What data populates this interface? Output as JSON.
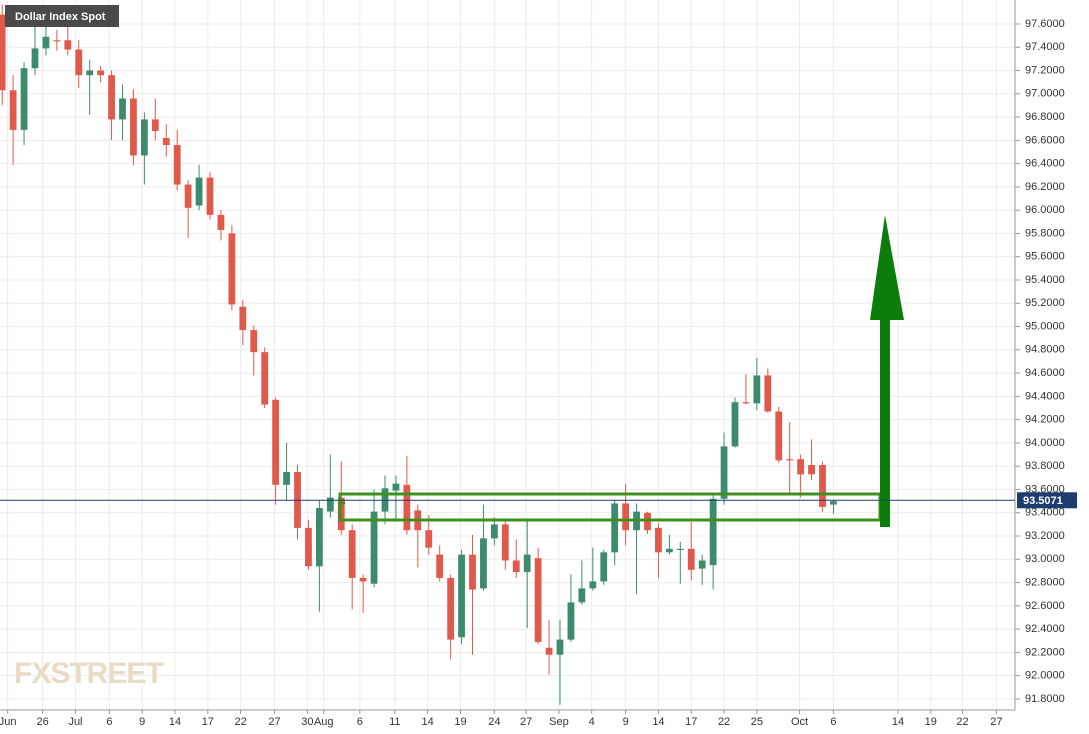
{
  "chart_data": {
    "type": "candlestick",
    "title": "Dollar Index Spot",
    "watermark": "FXSTREET",
    "up_color": "#3d8b6d",
    "down_color": "#e0594a",
    "grid": true,
    "last_price": 93.5071,
    "xlim": [
      -0.2,
      92.6
    ],
    "ylim": [
      91.705,
      97.806
    ],
    "xticks": [
      {
        "value": 0.5,
        "label": "Jun"
      },
      {
        "value": 3.7,
        "label": "26"
      },
      {
        "value": 6.7,
        "label": "Jul"
      },
      {
        "value": 9.8,
        "label": "6"
      },
      {
        "value": 12.8,
        "label": "9"
      },
      {
        "value": 15.8,
        "label": "14"
      },
      {
        "value": 18.8,
        "label": "17"
      },
      {
        "value": 21.8,
        "label": "22"
      },
      {
        "value": 24.9,
        "label": "27"
      },
      {
        "value": 27.9,
        "label": "30"
      },
      {
        "value": 29.4,
        "label": "Aug"
      },
      {
        "value": 32.7,
        "label": "6"
      },
      {
        "value": 35.9,
        "label": "11"
      },
      {
        "value": 38.9,
        "label": "14"
      },
      {
        "value": 41.9,
        "label": "19"
      },
      {
        "value": 45,
        "label": "24"
      },
      {
        "value": 47.9,
        "label": "27"
      },
      {
        "value": 50.9,
        "label": "Sep"
      },
      {
        "value": 53.9,
        "label": "4"
      },
      {
        "value": 57,
        "label": "9"
      },
      {
        "value": 60,
        "label": "14"
      },
      {
        "value": 63,
        "label": "17"
      },
      {
        "value": 66,
        "label": "22"
      },
      {
        "value": 69,
        "label": "25"
      },
      {
        "value": 72.9,
        "label": "Oct"
      },
      {
        "value": 76,
        "label": "6"
      },
      {
        "value": 81.9,
        "label": "14"
      },
      {
        "value": 84.9,
        "label": "19"
      },
      {
        "value": 87.8,
        "label": "22"
      },
      {
        "value": 90.9,
        "label": "27"
      }
    ],
    "yticks": [
      {
        "value": 91.8,
        "label": "91.8000"
      },
      {
        "value": 92.0,
        "label": "92.0000"
      },
      {
        "value": 92.2,
        "label": "92.2000"
      },
      {
        "value": 92.4,
        "label": "92.4000"
      },
      {
        "value": 92.6,
        "label": "92.6000"
      },
      {
        "value": 92.8,
        "label": "92.8000"
      },
      {
        "value": 93.0,
        "label": "93.0000"
      },
      {
        "value": 93.2,
        "label": "93.2000"
      },
      {
        "value": 93.4,
        "label": "93.4000"
      },
      {
        "value": 93.6,
        "label": "93.6000"
      },
      {
        "value": 93.8,
        "label": "93.8000"
      },
      {
        "value": 94.0,
        "label": "94.0000"
      },
      {
        "value": 94.2,
        "label": "94.2000"
      },
      {
        "value": 94.4,
        "label": "94.4000"
      },
      {
        "value": 94.6,
        "label": "94.6000"
      },
      {
        "value": 94.8,
        "label": "94.8000"
      },
      {
        "value": 95.0,
        "label": "95.0000"
      },
      {
        "value": 95.2,
        "label": "95.2000"
      },
      {
        "value": 95.4,
        "label": "95.4000"
      },
      {
        "value": 95.6,
        "label": "95.6000"
      },
      {
        "value": 95.8,
        "label": "95.8000"
      },
      {
        "value": 96.0,
        "label": "96.0000"
      },
      {
        "value": 96.2,
        "label": "96.2000"
      },
      {
        "value": 96.4,
        "label": "96.4000"
      },
      {
        "value": 96.6,
        "label": "96.6000"
      },
      {
        "value": 96.8,
        "label": "96.8000"
      },
      {
        "value": 97.0,
        "label": "97.0000"
      },
      {
        "value": 97.2,
        "label": "97.2000"
      },
      {
        "value": 97.4,
        "label": "97.4000"
      },
      {
        "value": 97.6,
        "label": "97.6000"
      }
    ],
    "open": [
      97.68,
      97.03,
      96.69,
      97.22,
      97.39,
      97.46,
      97.46,
      97.38,
      97.16,
      97.2,
      97.16,
      96.78,
      96.96,
      96.47,
      96.78,
      96.62,
      96.56,
      96.22,
      96.04,
      96.28,
      95.96,
      95.8,
      95.17,
      94.97,
      94.78,
      94.37,
      93.64,
      93.75,
      93.27,
      92.94,
      93.41,
      93.53,
      93.25,
      92.84,
      92.79,
      93.41,
      93.59,
      93.64,
      93.42,
      93.25,
      93.04,
      92.84,
      92.33,
      93.04,
      92.75,
      93.18,
      93.3,
      92.99,
      92.89,
      93.01,
      92.24,
      92.18,
      92.31,
      92.63,
      92.75,
      92.81,
      93.06,
      93.48,
      93.25,
      93.4,
      93.27,
      93.06,
      93.08,
      93.09,
      92.92,
      92.95,
      93.52,
      93.97,
      94.35,
      94.34,
      94.58,
      94.27,
      93.86,
      93.86,
      93.81,
      93.81,
      93.47
    ],
    "high": [
      97.77,
      97.16,
      97.27,
      97.62,
      97.6,
      97.55,
      97.63,
      97.46,
      97.29,
      97.24,
      97.2,
      97.08,
      97.04,
      96.84,
      96.96,
      96.74,
      96.69,
      96.26,
      96.39,
      96.33,
      96.0,
      95.87,
      95.23,
      95.01,
      94.82,
      94.39,
      94.0,
      93.81,
      93.34,
      93.51,
      93.9,
      93.84,
      93.3,
      92.87,
      93.6,
      93.72,
      93.72,
      93.89,
      93.47,
      93.38,
      93.12,
      92.87,
      93.08,
      93.21,
      93.47,
      93.36,
      93.35,
      93.17,
      93.34,
      93.1,
      92.48,
      92.48,
      92.87,
      92.99,
      93.1,
      93.08,
      93.51,
      93.65,
      93.48,
      93.41,
      93.31,
      93.21,
      93.15,
      93.32,
      93.04,
      93.55,
      94.09,
      94.39,
      94.59,
      94.73,
      94.64,
      94.31,
      94.18,
      93.9,
      94.03,
      93.84,
      93.51
    ],
    "low": [
      96.9,
      96.39,
      96.56,
      97.16,
      97.33,
      97.37,
      97.33,
      97.05,
      96.82,
      97.1,
      96.6,
      96.6,
      96.39,
      96.22,
      96.6,
      96.46,
      96.17,
      95.76,
      96.0,
      95.92,
      95.74,
      95.14,
      94.84,
      94.58,
      94.3,
      93.47,
      93.51,
      93.17,
      92.91,
      92.55,
      93.36,
      93.21,
      92.57,
      92.54,
      92.76,
      93.3,
      93.34,
      93.21,
      92.93,
      93.04,
      92.81,
      92.14,
      92.27,
      92.18,
      92.73,
      93.12,
      92.91,
      92.84,
      92.41,
      92.27,
      92.01,
      91.75,
      92.29,
      92.61,
      92.73,
      92.78,
      92.95,
      93.12,
      92.7,
      93.22,
      92.84,
      93.04,
      92.79,
      92.82,
      92.78,
      92.74,
      93.47,
      93.96,
      94.33,
      94.28,
      94.26,
      93.83,
      93.55,
      93.53,
      93.68,
      93.41,
      93.39
    ],
    "close": [
      97.03,
      96.69,
      97.22,
      97.39,
      97.49,
      97.45,
      97.38,
      97.16,
      97.2,
      97.16,
      96.78,
      96.96,
      96.47,
      96.78,
      96.68,
      96.56,
      96.22,
      96.02,
      96.28,
      95.96,
      95.83,
      95.19,
      94.97,
      94.78,
      94.33,
      93.64,
      93.75,
      93.27,
      92.94,
      93.44,
      93.53,
      93.25,
      92.84,
      92.81,
      93.41,
      93.61,
      93.65,
      93.25,
      93.25,
      93.1,
      92.84,
      92.31,
      93.04,
      92.74,
      93.18,
      93.3,
      92.99,
      92.89,
      93.04,
      92.29,
      92.18,
      92.31,
      92.63,
      92.75,
      92.81,
      93.06,
      93.48,
      93.25,
      93.41,
      93.25,
      93.06,
      93.09,
      93.09,
      92.91,
      92.99,
      93.52,
      93.97,
      94.35,
      94.34,
      94.58,
      94.27,
      93.85,
      93.85,
      93.73,
      93.73,
      93.45,
      93.5
    ]
  }
}
